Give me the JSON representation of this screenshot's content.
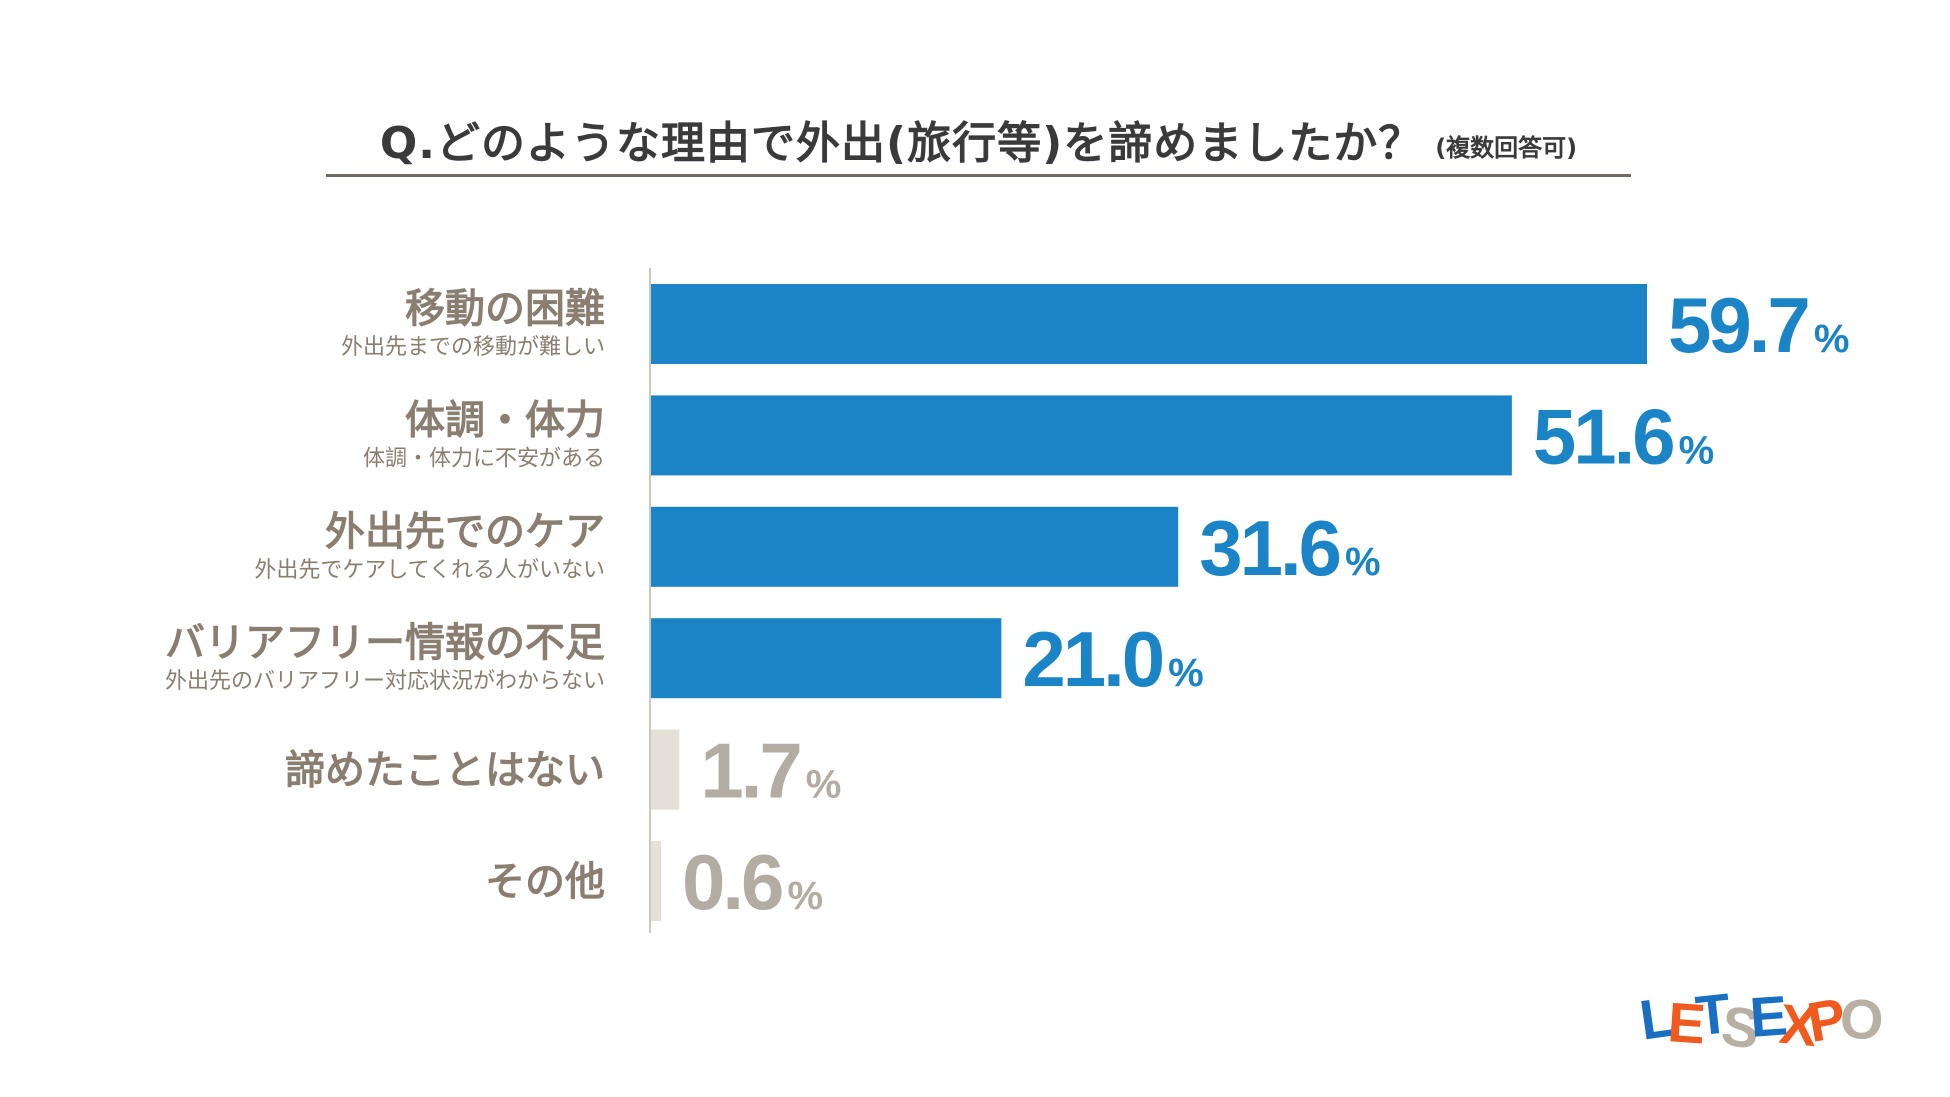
{
  "title": {
    "main": "Q.どのような理由で外出(旅行等)を諦めましたか？",
    "note": "(複数回答可)"
  },
  "chart_data": {
    "type": "bar",
    "orientation": "horizontal",
    "categories": [
      "移動の困難",
      "体調・体力",
      "外出先でのケア",
      "バリアフリー情報の不足",
      "諦めたことはない",
      "その他"
    ],
    "sublabels": [
      "外出先までの移動が難しい",
      "体調・体力に不安がある",
      "外出先でケアしてくれる人がいない",
      "外出先のバリアフリー対応状況がわからない",
      "",
      ""
    ],
    "values": [
      59.7,
      51.6,
      31.6,
      21.0,
      1.7,
      0.6
    ],
    "value_labels": [
      "59.7",
      "51.6",
      "31.6",
      "21.0",
      "1.7",
      "0.6"
    ],
    "unit": "%",
    "xlim": [
      0,
      60
    ],
    "grid": false,
    "colors": {
      "highlight": "#1a84c7",
      "muted_bar": "#e4e0d8",
      "muted_text": "#b3aca3",
      "axis": "#cfc8bd",
      "label": "#8a7e70"
    },
    "highlight_count": 4
  },
  "logo": {
    "text": "LETSEXPO",
    "colors": [
      "#1a6fc2",
      "#f05a1e",
      "#1a6fc2",
      "#b9b0a4",
      "#1a6fc2",
      "#f05a1e",
      "#f05a1e",
      "#b9b0a4"
    ]
  }
}
